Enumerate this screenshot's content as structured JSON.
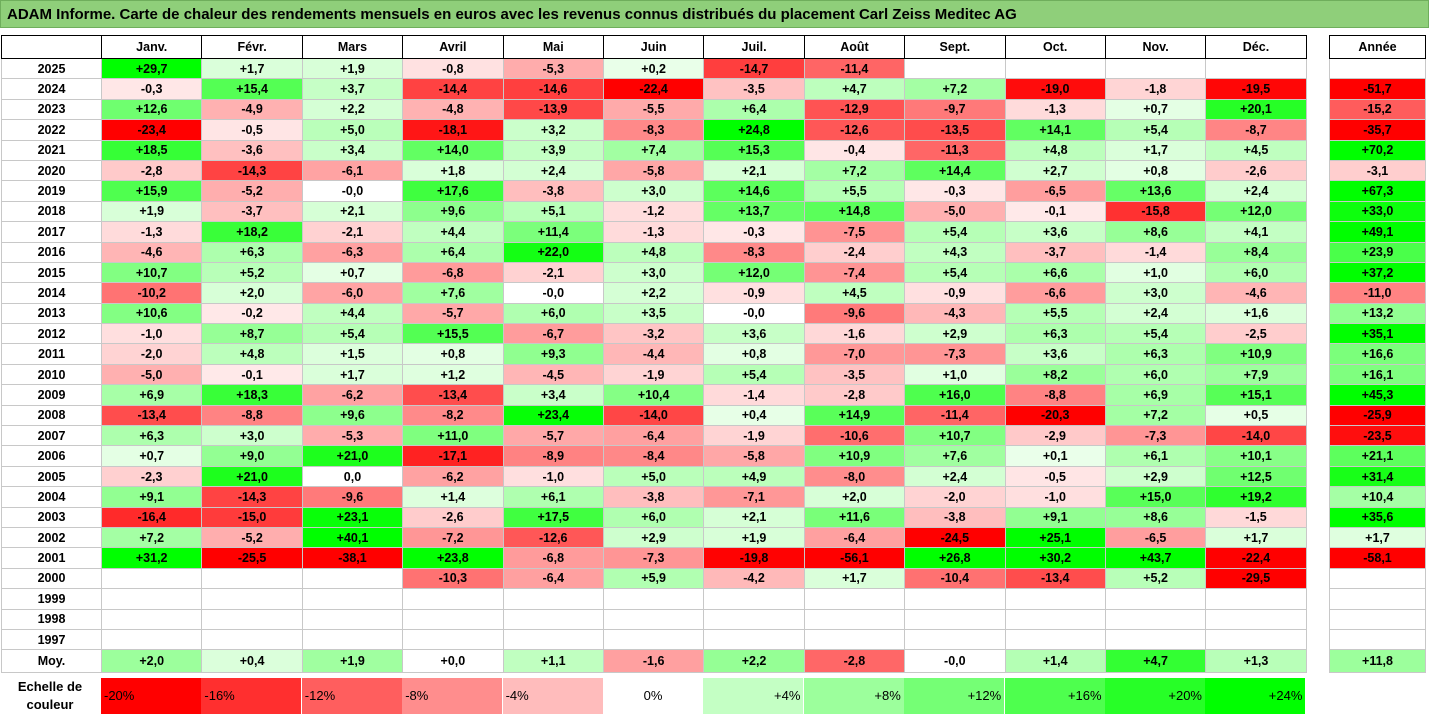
{
  "title": "ADAM Informe. Carte de chaleur des rendements mensuels en euros avec les revenus connus distribués du placement Carl Zeiss Meditec AG",
  "colors": {
    "red": "#ff0000",
    "green": "#00ff00",
    "white": "#ffffff",
    "title_bg": "#8fcf7a"
  },
  "chart_data": {
    "type": "heatmap",
    "title": "ADAM Informe. Carte de chaleur des rendements mensuels en euros avec les revenus connus distribués du placement Carl Zeiss Meditec AG",
    "months": [
      "Janv.",
      "Févr.",
      "Mars",
      "Avril",
      "Mai",
      "Juin",
      "Juil.",
      "Août",
      "Sept.",
      "Oct.",
      "Nov.",
      "Déc."
    ],
    "year_header": "Année",
    "rows": [
      {
        "year": "2025",
        "values": [
          "+29,7",
          "+1,7",
          "+1,9",
          "-0,8",
          "-5,3",
          "+0,2",
          "-14,7",
          "-11,4",
          "",
          "",
          "",
          ""
        ],
        "annual": ""
      },
      {
        "year": "2024",
        "values": [
          "-0,3",
          "+15,4",
          "+3,7",
          "-14,4",
          "-14,6",
          "-22,4",
          "-3,5",
          "+4,7",
          "+7,2",
          "-19,0",
          "-1,8",
          "-19,5"
        ],
        "annual": "-51,7"
      },
      {
        "year": "2023",
        "values": [
          "+12,6",
          "-4,9",
          "+2,2",
          "-4,8",
          "-13,9",
          "-5,5",
          "+6,4",
          "-12,9",
          "-9,7",
          "-1,3",
          "+0,7",
          "+20,1"
        ],
        "annual": "-15,2"
      },
      {
        "year": "2022",
        "values": [
          "-23,4",
          "-0,5",
          "+5,0",
          "-18,1",
          "+3,2",
          "-8,3",
          "+24,8",
          "-12,6",
          "-13,5",
          "+14,1",
          "+5,4",
          "-8,7"
        ],
        "annual": "-35,7"
      },
      {
        "year": "2021",
        "values": [
          "+18,5",
          "-3,6",
          "+3,4",
          "+14,0",
          "+3,9",
          "+7,4",
          "+15,3",
          "-0,4",
          "-11,3",
          "+4,8",
          "+1,7",
          "+4,5"
        ],
        "annual": "+70,2"
      },
      {
        "year": "2020",
        "values": [
          "-2,8",
          "-14,3",
          "-6,1",
          "+1,8",
          "+2,4",
          "-5,8",
          "+2,1",
          "+7,2",
          "+14,4",
          "+2,7",
          "+0,8",
          "-2,6"
        ],
        "annual": "-3,1"
      },
      {
        "year": "2019",
        "values": [
          "+15,9",
          "-5,2",
          "-0,0",
          "+17,6",
          "-3,8",
          "+3,0",
          "+14,6",
          "+5,5",
          "-0,3",
          "-6,5",
          "+13,6",
          "+2,4"
        ],
        "annual": "+67,3"
      },
      {
        "year": "2018",
        "values": [
          "+1,9",
          "-3,7",
          "+2,1",
          "+9,6",
          "+5,1",
          "-1,2",
          "+13,7",
          "+14,8",
          "-5,0",
          "-0,1",
          "-15,8",
          "+12,0"
        ],
        "annual": "+33,0"
      },
      {
        "year": "2017",
        "values": [
          "-1,3",
          "+18,2",
          "-2,1",
          "+4,4",
          "+11,4",
          "-1,3",
          "-0,3",
          "-7,5",
          "+5,4",
          "+3,6",
          "+8,6",
          "+4,1"
        ],
        "annual": "+49,1"
      },
      {
        "year": "2016",
        "values": [
          "-4,6",
          "+6,3",
          "-6,3",
          "+6,4",
          "+22,0",
          "+4,8",
          "-8,3",
          "-2,4",
          "+4,3",
          "-3,7",
          "-1,4",
          "+8,4"
        ],
        "annual": "+23,9"
      },
      {
        "year": "2015",
        "values": [
          "+10,7",
          "+5,2",
          "+0,7",
          "-6,8",
          "-2,1",
          "+3,0",
          "+12,0",
          "-7,4",
          "+5,4",
          "+6,6",
          "+1,0",
          "+6,0"
        ],
        "annual": "+37,2"
      },
      {
        "year": "2014",
        "values": [
          "-10,2",
          "+2,0",
          "-6,0",
          "+7,6",
          "-0,0",
          "+2,2",
          "-0,9",
          "+4,5",
          "-0,9",
          "-6,6",
          "+3,0",
          "-4,6"
        ],
        "annual": "-11,0"
      },
      {
        "year": "2013",
        "values": [
          "+10,6",
          "-0,2",
          "+4,4",
          "-5,7",
          "+6,0",
          "+3,5",
          "-0,0",
          "-9,6",
          "-4,3",
          "+5,5",
          "+2,4",
          "+1,6"
        ],
        "annual": "+13,2"
      },
      {
        "year": "2012",
        "values": [
          "-1,0",
          "+8,7",
          "+5,4",
          "+15,5",
          "-6,7",
          "-3,2",
          "+3,6",
          "-1,6",
          "+2,9",
          "+6,3",
          "+5,4",
          "-2,5"
        ],
        "annual": "+35,1"
      },
      {
        "year": "2011",
        "values": [
          "-2,0",
          "+4,8",
          "+1,5",
          "+0,8",
          "+9,3",
          "-4,4",
          "+0,8",
          "-7,0",
          "-7,3",
          "+3,6",
          "+6,3",
          "+10,9"
        ],
        "annual": "+16,6"
      },
      {
        "year": "2010",
        "values": [
          "-5,0",
          "-0,1",
          "+1,7",
          "+1,2",
          "-4,5",
          "-1,9",
          "+5,4",
          "-3,5",
          "+1,0",
          "+8,2",
          "+6,0",
          "+7,9"
        ],
        "annual": "+16,1"
      },
      {
        "year": "2009",
        "values": [
          "+6,9",
          "+18,3",
          "-6,2",
          "-13,4",
          "+3,4",
          "+10,4",
          "-1,4",
          "-2,8",
          "+16,0",
          "-8,8",
          "+6,9",
          "+15,1"
        ],
        "annual": "+45,3"
      },
      {
        "year": "2008",
        "values": [
          "-13,4",
          "-8,8",
          "+9,6",
          "-8,2",
          "+23,4",
          "-14,0",
          "+0,4",
          "+14,9",
          "-11,4",
          "-20,3",
          "+7,2",
          "+0,5"
        ],
        "annual": "-25,9"
      },
      {
        "year": "2007",
        "values": [
          "+6,3",
          "+3,0",
          "-5,3",
          "+11,0",
          "-5,7",
          "-6,4",
          "-1,9",
          "-10,6",
          "+10,7",
          "-2,9",
          "-7,3",
          "-14,0"
        ],
        "annual": "-23,5"
      },
      {
        "year": "2006",
        "values": [
          "+0,7",
          "+9,0",
          "+21,0",
          "-17,1",
          "-8,9",
          "-8,4",
          "-5,8",
          "+10,9",
          "+7,6",
          "+0,1",
          "+6,1",
          "+10,1"
        ],
        "annual": "+21,1"
      },
      {
        "year": "2005",
        "values": [
          "-2,3",
          "+21,0",
          "0,0",
          "-6,2",
          "-1,0",
          "+5,0",
          "+4,9",
          "-8,0",
          "+2,4",
          "-0,5",
          "+2,9",
          "+12,5"
        ],
        "annual": "+31,4"
      },
      {
        "year": "2004",
        "values": [
          "+9,1",
          "-14,3",
          "-9,6",
          "+1,4",
          "+6,1",
          "-3,8",
          "-7,1",
          "+2,0",
          "-2,0",
          "-1,0",
          "+15,0",
          "+19,2"
        ],
        "annual": "+10,4"
      },
      {
        "year": "2003",
        "values": [
          "-16,4",
          "-15,0",
          "+23,1",
          "-2,6",
          "+17,5",
          "+6,0",
          "+2,1",
          "+11,6",
          "-3,8",
          "+9,1",
          "+8,6",
          "-1,5"
        ],
        "annual": "+35,6"
      },
      {
        "year": "2002",
        "values": [
          "+7,2",
          "-5,2",
          "+40,1",
          "-7,2",
          "-12,6",
          "+2,9",
          "+1,9",
          "-6,4",
          "-24,5",
          "+25,1",
          "-6,5",
          "+1,7"
        ],
        "annual": "+1,7"
      },
      {
        "year": "2001",
        "values": [
          "+31,2",
          "-25,5",
          "-38,1",
          "+23,8",
          "-6,8",
          "-7,3",
          "-19,8",
          "-56,1",
          "+26,8",
          "+30,2",
          "+43,7",
          "-22,4"
        ],
        "annual": "-58,1"
      },
      {
        "year": "2000",
        "values": [
          "",
          "",
          "",
          "-10,3",
          "-6,4",
          "+5,9",
          "-4,2",
          "+1,7",
          "-10,4",
          "-13,4",
          "+5,2",
          "-29,5"
        ],
        "annual": ""
      },
      {
        "year": "1999",
        "values": [
          "",
          "",
          "",
          "",
          "",
          "",
          "",
          "",
          "",
          "",
          "",
          ""
        ],
        "annual": ""
      },
      {
        "year": "1998",
        "values": [
          "",
          "",
          "",
          "",
          "",
          "",
          "",
          "",
          "",
          "",
          "",
          ""
        ],
        "annual": ""
      },
      {
        "year": "1997",
        "values": [
          "",
          "",
          "",
          "",
          "",
          "",
          "",
          "",
          "",
          "",
          "",
          ""
        ],
        "annual": ""
      }
    ],
    "average": {
      "label": "Moy.",
      "values": [
        "+2,0",
        "+0,4",
        "+1,9",
        "+0,0",
        "+1,1",
        "-1,6",
        "+2,2",
        "-2,8",
        "-0,0",
        "+1,4",
        "+4,7",
        "+1,3"
      ],
      "annual": "+11,8"
    },
    "scale": {
      "label_line1": "Echelle de",
      "label_line2": "couleur",
      "steps": [
        {
          "label": "-20%",
          "value": -20
        },
        {
          "label": "-16%",
          "value": -16
        },
        {
          "label": "-12%",
          "value": -12
        },
        {
          "label": "-8%",
          "value": -8
        },
        {
          "label": "-4%",
          "value": -4
        },
        {
          "label": "0%",
          "value": 0
        },
        {
          "label": "+4%",
          "value": 4
        },
        {
          "label": "+8%",
          "value": 8
        },
        {
          "label": "+12%",
          "value": 12
        },
        {
          "label": "+16%",
          "value": 16
        },
        {
          "label": "+20%",
          "value": 20
        },
        {
          "label": "+24%",
          "value": 24
        }
      ]
    }
  }
}
